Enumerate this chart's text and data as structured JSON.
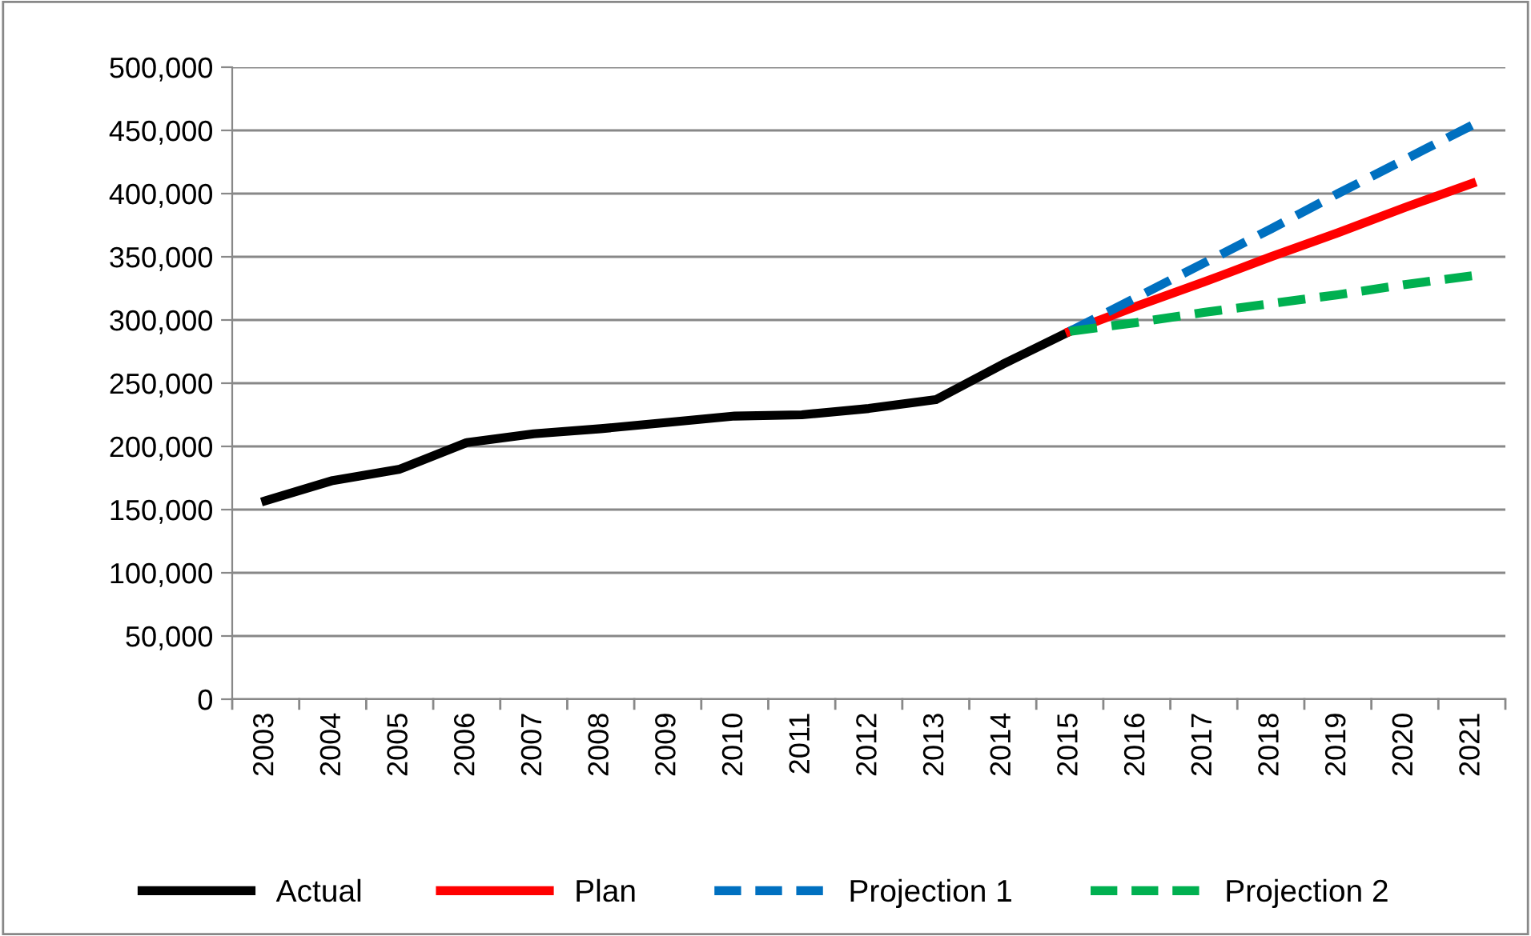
{
  "chart_data": {
    "type": "line",
    "categories": [
      "2003",
      "2004",
      "2005",
      "2006",
      "2007",
      "2008",
      "2009",
      "2010",
      "2011",
      "2012",
      "2013",
      "2014",
      "2015",
      "2016",
      "2017",
      "2018",
      "2019",
      "2020",
      "2021"
    ],
    "series": [
      {
        "name": "Actual",
        "color": "#000000",
        "line_style": "solid",
        "values": [
          157000,
          173000,
          182000,
          203000,
          210000,
          214000,
          219000,
          224000,
          225000,
          230000,
          237000,
          265000,
          291000,
          null,
          null,
          null,
          null,
          null,
          null
        ]
      },
      {
        "name": "Plan",
        "color": "#ff0000",
        "line_style": "solid",
        "values": [
          null,
          null,
          null,
          null,
          null,
          null,
          null,
          null,
          null,
          null,
          null,
          null,
          291000,
          311000,
          330000,
          350000,
          369000,
          389000,
          408000
        ]
      },
      {
        "name": "Projection 1",
        "color": "#0070c0",
        "line_style": "dashed",
        "values": [
          null,
          null,
          null,
          null,
          null,
          null,
          null,
          null,
          null,
          null,
          null,
          null,
          291000,
          318000,
          345000,
          372000,
          400000,
          427000,
          454000
        ]
      },
      {
        "name": "Projection 2",
        "color": "#00b050",
        "line_style": "dashed",
        "values": [
          null,
          null,
          null,
          null,
          null,
          null,
          null,
          null,
          null,
          null,
          null,
          null,
          291000,
          298000,
          306000,
          313000,
          320000,
          328000,
          335000
        ]
      }
    ],
    "ylim": [
      0,
      500000
    ],
    "yticks": [
      0,
      {
        "value": 50000,
        "label": "50,000"
      },
      {
        "value": 100000,
        "label": "100,000"
      },
      {
        "value": 150000,
        "label": "150,000"
      },
      {
        "value": 200000,
        "label": "200,000"
      },
      {
        "value": 250000,
        "label": "250,000"
      },
      {
        "value": 300000,
        "label": "300,000"
      },
      {
        "value": 350000,
        "label": "350,000"
      },
      {
        "value": 400000,
        "label": "400,000"
      },
      {
        "value": 450000,
        "label": "450,000"
      },
      {
        "value": 500000,
        "label": "500,000"
      }
    ],
    "grid": "y",
    "legend": "bottom",
    "marker": "none"
  }
}
